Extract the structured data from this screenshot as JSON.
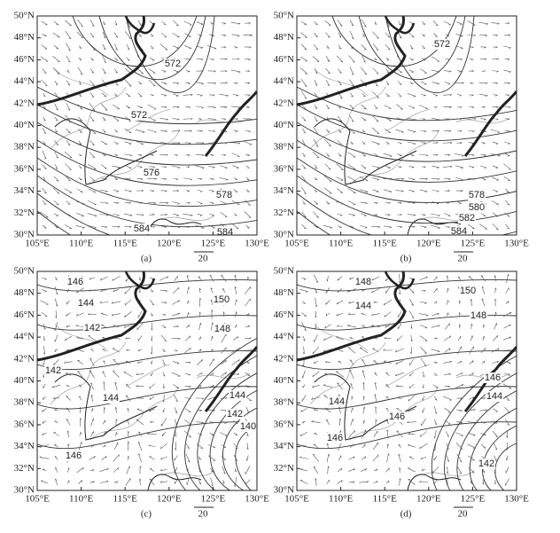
{
  "lat_labels": [
    "50°N",
    "48°N",
    "46°N",
    "44°N",
    "42°N",
    "40°N",
    "38°N",
    "36°N",
    "34°N",
    "32°N",
    "30°N"
  ],
  "lon_labels": [
    "105°E",
    "110°E",
    "115°E",
    "120°E",
    "125°E",
    "130°E"
  ],
  "panels": [
    {
      "label": "(a)",
      "reference_vector": "20",
      "contour_labels": [
        "572",
        "572",
        "576",
        "578",
        "584",
        "584"
      ]
    },
    {
      "label": "(b)",
      "reference_vector": "20",
      "contour_labels": [
        "572",
        "578",
        "580",
        "582",
        "584"
      ]
    },
    {
      "label": "(c)",
      "reference_vector": "20",
      "contour_labels": [
        "146",
        "144",
        "142",
        "150",
        "148",
        "142",
        "144",
        "144",
        "142",
        "140",
        "146"
      ]
    },
    {
      "label": "(d)",
      "reference_vector": "20",
      "contour_labels": [
        "148",
        "150",
        "144",
        "148",
        "146",
        "144",
        "144",
        "146",
        "146",
        "142"
      ]
    }
  ]
}
